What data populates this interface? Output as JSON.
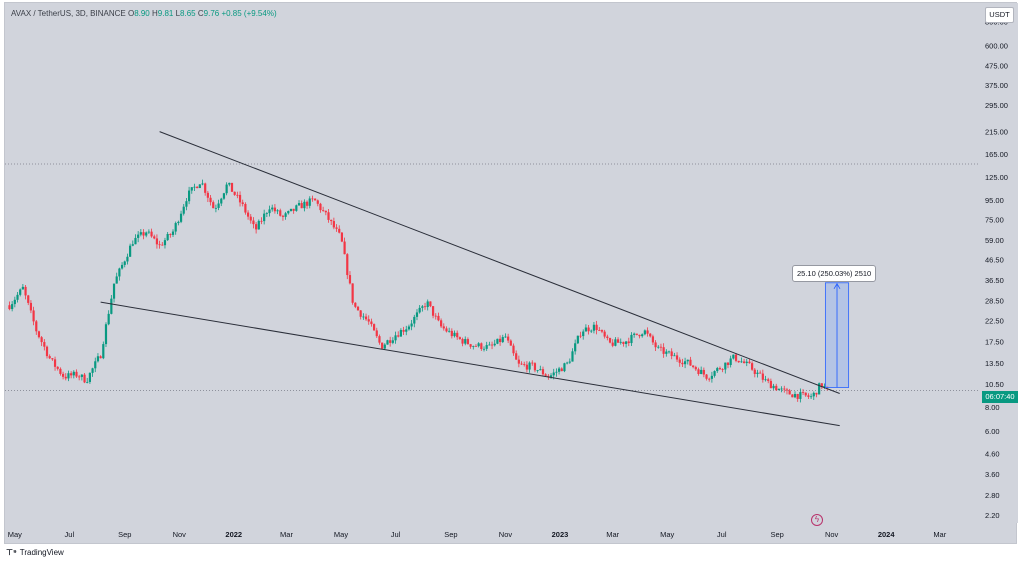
{
  "header": {
    "symbol": "AVAX / TetherUS, 3D, BINANCE",
    "open_label": "O",
    "open": "8.90",
    "high_label": "H",
    "high": "9.81",
    "low_label": "L",
    "low": "8.65",
    "close_label": "C",
    "close": "9.76",
    "change": "+0.85 (+9.54%)"
  },
  "price_axis": {
    "currency": "USDT",
    "countdown": "06:07:40"
  },
  "measure": {
    "label": "25.10 (250.03%) 2510"
  },
  "watermark": {
    "brand": "TradingView",
    "logo": "tradingview-logo-icon"
  },
  "colors": {
    "up": "#089981",
    "down": "#f23645",
    "measure_fill": "#a9bfe8",
    "measure_line": "#2962ff",
    "trendline": "#2a2e39"
  },
  "icons": {
    "bolt": "lightning-bolt-icon"
  },
  "chart_data": {
    "type": "candlestick",
    "scale": "log",
    "ylim": [
      2.0,
      1000
    ],
    "y_ticks": [
      "800.00",
      "600.00",
      "475.00",
      "375.00",
      "295.00",
      "215.00",
      "165.00",
      "125.00",
      "95.00",
      "75.00",
      "59.00",
      "46.50",
      "36.50",
      "28.50",
      "22.50",
      "17.50",
      "13.50",
      "10.50",
      "8.00",
      "6.00",
      "4.60",
      "3.60",
      "2.80",
      "2.20"
    ],
    "x_ticks": [
      "May",
      "Jul",
      "Sep",
      "Nov",
      "2022",
      "Mar",
      "May",
      "Jul",
      "Sep",
      "Nov",
      "2023",
      "Mar",
      "May",
      "Jul",
      "Sep",
      "Nov",
      "2024",
      "Mar"
    ],
    "x_range": [
      "2021-04-20",
      "2024-04-15"
    ],
    "last_close": 9.76,
    "ath_reference": 146,
    "close_path": [
      [
        "2021-04-25",
        27
      ],
      [
        "2021-05-10",
        33
      ],
      [
        "2021-05-25",
        20
      ],
      [
        "2021-06-10",
        14
      ],
      [
        "2021-06-25",
        11.5
      ],
      [
        "2021-07-10",
        11.8
      ],
      [
        "2021-07-20",
        11
      ],
      [
        "2021-08-05",
        15
      ],
      [
        "2021-08-20",
        35
      ],
      [
        "2021-09-10",
        58
      ],
      [
        "2021-09-25",
        65
      ],
      [
        "2021-10-10",
        55
      ],
      [
        "2021-10-25",
        65
      ],
      [
        "2021-11-10",
        100
      ],
      [
        "2021-11-25",
        120
      ],
      [
        "2021-12-10",
        85
      ],
      [
        "2021-12-25",
        115
      ],
      [
        "2022-01-10",
        90
      ],
      [
        "2022-01-25",
        66
      ],
      [
        "2022-02-10",
        88
      ],
      [
        "2022-02-25",
        77
      ],
      [
        "2022-03-15",
        88
      ],
      [
        "2022-04-01",
        95
      ],
      [
        "2022-04-15",
        78
      ],
      [
        "2022-05-01",
        60
      ],
      [
        "2022-05-15",
        27
      ],
      [
        "2022-06-01",
        22
      ],
      [
        "2022-06-15",
        16.5
      ],
      [
        "2022-07-01",
        19
      ],
      [
        "2022-07-15",
        21
      ],
      [
        "2022-08-05",
        28
      ],
      [
        "2022-08-20",
        21
      ],
      [
        "2022-09-10",
        18
      ],
      [
        "2022-09-25",
        16.8
      ],
      [
        "2022-10-15",
        16.3
      ],
      [
        "2022-11-01",
        18.5
      ],
      [
        "2022-11-15",
        13.2
      ],
      [
        "2022-12-01",
        13
      ],
      [
        "2022-12-20",
        11.5
      ],
      [
        "2023-01-10",
        13.5
      ],
      [
        "2023-01-25",
        20
      ],
      [
        "2023-02-10",
        21
      ],
      [
        "2023-02-25",
        17
      ],
      [
        "2023-03-15",
        17.5
      ],
      [
        "2023-04-05",
        20
      ],
      [
        "2023-04-20",
        16
      ],
      [
        "2023-05-10",
        14.5
      ],
      [
        "2023-05-25",
        13.5
      ],
      [
        "2023-06-15",
        11.5
      ],
      [
        "2023-07-01",
        13
      ],
      [
        "2023-07-15",
        14.5
      ],
      [
        "2023-08-01",
        13
      ],
      [
        "2023-08-20",
        10.8
      ],
      [
        "2023-09-10",
        9.5
      ],
      [
        "2023-09-25",
        9.2
      ],
      [
        "2023-10-10",
        9
      ],
      [
        "2023-10-20",
        10.5
      ],
      [
        "2023-10-28",
        9.76
      ]
    ],
    "upper_trendline": [
      [
        "2021-10-10",
        215
      ],
      [
        "2023-11-10",
        9.4
      ]
    ],
    "lower_trendline": [
      [
        "2021-08-05",
        28
      ],
      [
        "2023-11-10",
        6.4
      ]
    ],
    "horizontal_level": 146,
    "last_price_level": 9.76,
    "price_range_measure": {
      "from": 10.1,
      "to": 35.3,
      "x_start": "2023-10-25",
      "x_end": "2023-11-20"
    }
  }
}
